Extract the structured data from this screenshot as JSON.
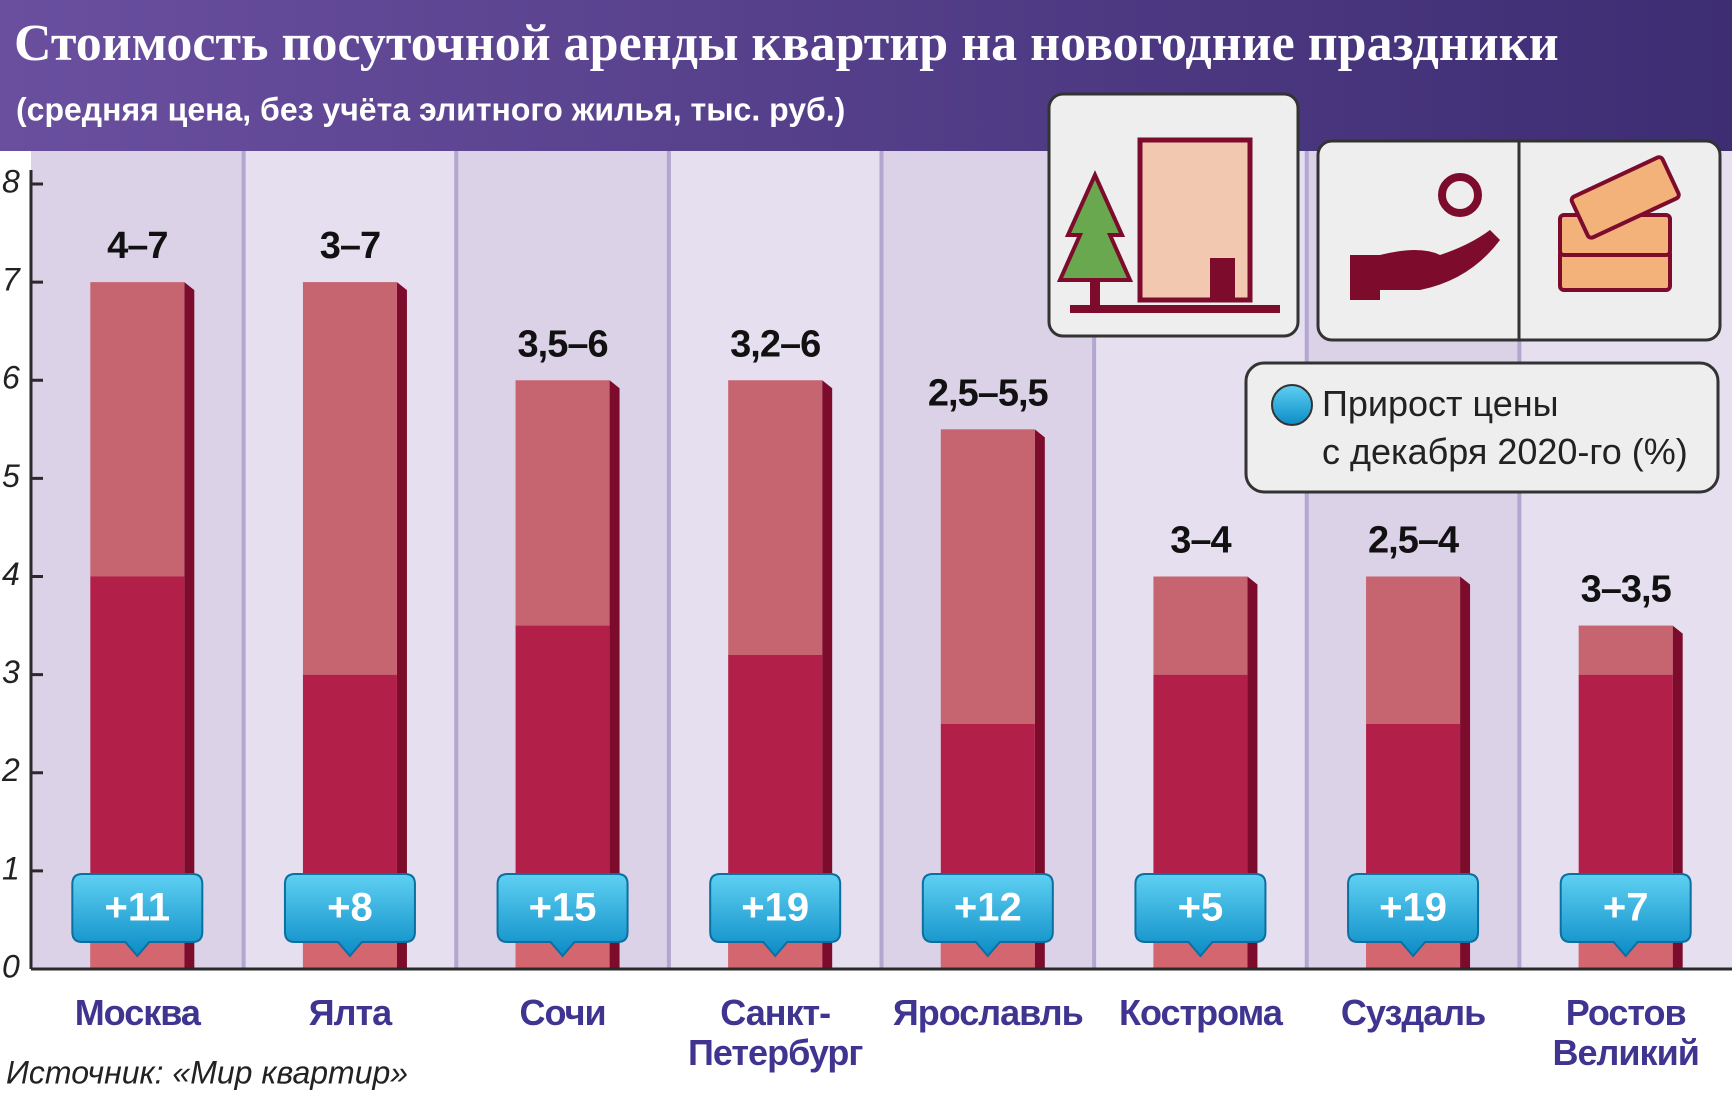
{
  "chart_data": {
    "type": "range-bar",
    "title": "Стоимость посуточной аренды квартир на новогодние праздники",
    "subtitle": "(средняя цена, без учёта элитного жилья, тыс. руб.)",
    "categories": [
      "Москва",
      "Ялта",
      "Сочи",
      "Санкт-Петербург",
      "Ярославль",
      "Кострома",
      "Суздаль",
      "Ростов Великий"
    ],
    "low": [
      4,
      3,
      3.5,
      3.2,
      2.5,
      3,
      2.5,
      3
    ],
    "high": [
      7,
      7,
      6,
      6,
      5.5,
      4,
      4,
      3.5
    ],
    "value_labels": [
      "4–7",
      "3–7",
      "3,5–6",
      "3,2–6",
      "2,5–5,5",
      "3–4",
      "2,5–4",
      "3–3,5"
    ],
    "low_color": "#b21f48",
    "high_color": "#c6646f",
    "side_color": "#7c0b2c",
    "growth_values": [
      11,
      8,
      15,
      19,
      12,
      5,
      19,
      7
    ],
    "growth_labels": [
      "+11",
      "+8",
      "+15",
      "+19",
      "+12",
      "+5",
      "+19",
      "+7"
    ],
    "growth_color": "#19a9dc",
    "legend": "Прирост цены с декабря 2020-го (%)",
    "ylim": [
      0,
      8
    ],
    "yticks": [
      0,
      1,
      2,
      3,
      4,
      5,
      6,
      7,
      8
    ],
    "source": "Источник: «Мир квартир»"
  }
}
